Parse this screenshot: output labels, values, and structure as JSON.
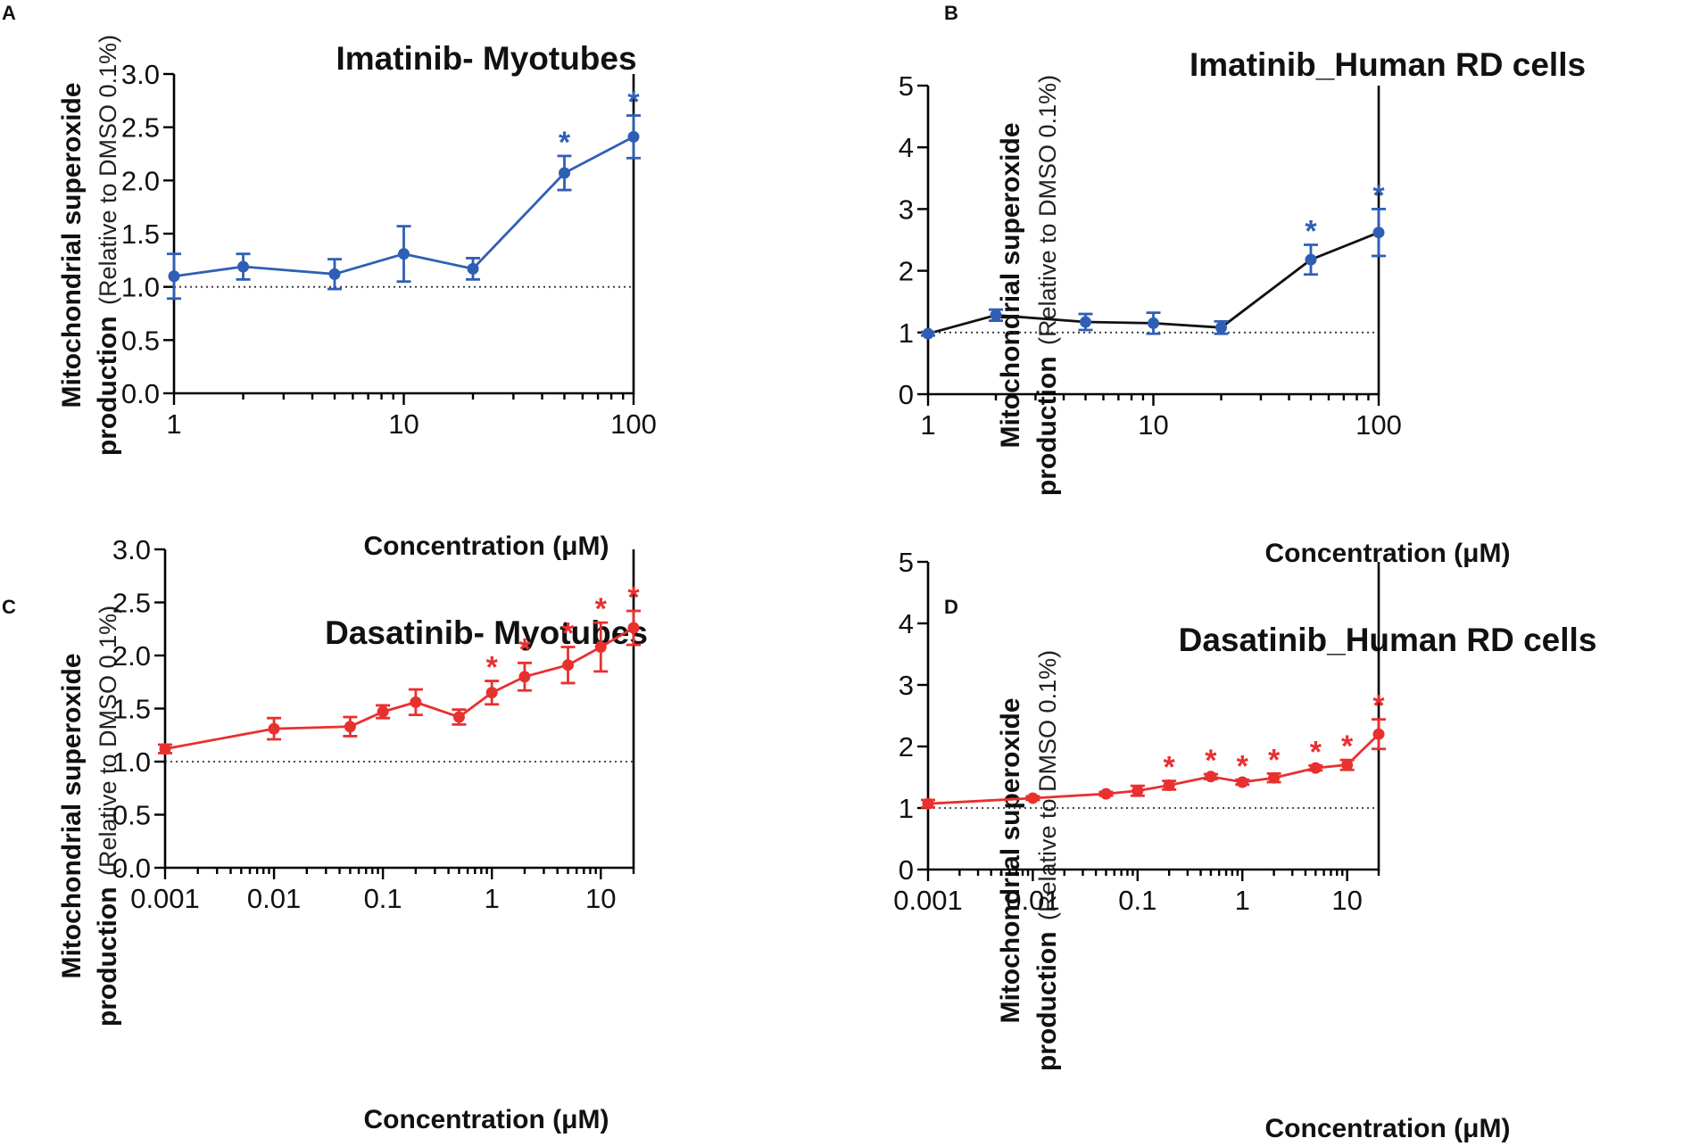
{
  "chart_data": [
    {
      "panel": "A",
      "type": "line",
      "title": "Imatinib- Myotubes",
      "xlabel": "Concentration (μM)",
      "ylabel": "Mitochondrial superoxide",
      "ylabel_line2": "production",
      "ylabel_sub": "(Relative to DMSO 0.1%)",
      "xscale": "log",
      "xlim": [
        1,
        100
      ],
      "ylim": [
        0,
        3.0
      ],
      "x_ticks": [
        1,
        10,
        100
      ],
      "x_tick_labels": [
        "1",
        "10",
        "100"
      ],
      "y_ticks": [
        0,
        0.5,
        1.0,
        1.5,
        2.0,
        2.5,
        3.0
      ],
      "y_tick_labels": [
        "0.0",
        "0.5",
        "1.0",
        "1.5",
        "2.0",
        "2.5",
        "3.0"
      ],
      "reference_line": 1.0,
      "color": "#2f5fb4",
      "line_color": "#2f5fb4",
      "series": [
        {
          "name": "Imatinib",
          "x": [
            1,
            2,
            5,
            10,
            20,
            50,
            100
          ],
          "values": [
            1.1,
            1.19,
            1.12,
            1.31,
            1.17,
            2.07,
            2.41
          ],
          "error": [
            0.21,
            0.12,
            0.14,
            0.26,
            0.1,
            0.16,
            0.2
          ],
          "significant": [
            false,
            false,
            false,
            false,
            false,
            true,
            true
          ]
        }
      ],
      "significance_marker": "*"
    },
    {
      "panel": "B",
      "type": "line",
      "title": "Imatinib_Human RD cells",
      "xlabel": "Concentration (μM)",
      "ylabel": "Mitochondrial superoxide",
      "ylabel_line2": "production",
      "ylabel_sub": "(Relative to DMSO 0.1%)",
      "xscale": "log",
      "xlim": [
        1,
        100
      ],
      "ylim": [
        0,
        5
      ],
      "x_ticks": [
        1,
        10,
        100
      ],
      "x_tick_labels": [
        "1",
        "10",
        "100"
      ],
      "y_ticks": [
        0,
        1,
        2,
        3,
        4,
        5
      ],
      "y_tick_labels": [
        "0",
        "1",
        "2",
        "3",
        "4",
        "5"
      ],
      "reference_line": 1.0,
      "color": "#2f5fb4",
      "line_color": "#111111",
      "series": [
        {
          "name": "Imatinib",
          "x": [
            1,
            2,
            5,
            10,
            20,
            50,
            100
          ],
          "values": [
            0.98,
            1.28,
            1.17,
            1.15,
            1.08,
            2.18,
            2.62
          ],
          "error": [
            0.03,
            0.09,
            0.13,
            0.17,
            0.1,
            0.24,
            0.38
          ],
          "significant": [
            false,
            false,
            false,
            false,
            false,
            true,
            true
          ]
        }
      ],
      "significance_marker": "*"
    },
    {
      "panel": "C",
      "type": "line",
      "title": "Dasatinib- Myotubes",
      "xlabel": "Concentration (μM)",
      "ylabel": "Mitochondrial superoxide",
      "ylabel_line2": "production",
      "ylabel_sub": "(Relative to DMSO 0.1%)",
      "xscale": "log",
      "xlim": [
        0.001,
        20
      ],
      "ylim": [
        0,
        3.0
      ],
      "x_ticks": [
        0.001,
        0.01,
        0.1,
        1,
        10
      ],
      "x_tick_labels": [
        "0.001",
        "0.01",
        "0.1",
        "1",
        "10"
      ],
      "y_ticks": [
        0,
        0.5,
        1.0,
        1.5,
        2.0,
        2.5,
        3.0
      ],
      "y_tick_labels": [
        "0.0",
        "0.5",
        "1.0",
        "1.5",
        "2.0",
        "2.5",
        "3.0"
      ],
      "reference_line": 1.0,
      "color": "#e8302f",
      "line_color": "#e8302f",
      "series": [
        {
          "name": "Dasatinib",
          "x": [
            0.001,
            0.01,
            0.05,
            0.1,
            0.2,
            0.5,
            1,
            2,
            5,
            10,
            20
          ],
          "values": [
            1.12,
            1.31,
            1.33,
            1.47,
            1.56,
            1.42,
            1.65,
            1.8,
            1.91,
            2.08,
            2.26
          ],
          "error": [
            0.04,
            0.1,
            0.09,
            0.06,
            0.12,
            0.07,
            0.11,
            0.13,
            0.17,
            0.23,
            0.16
          ],
          "significant": [
            false,
            false,
            false,
            false,
            false,
            false,
            true,
            true,
            true,
            true,
            true
          ]
        }
      ],
      "significance_marker": "*"
    },
    {
      "panel": "D",
      "type": "line",
      "title": "Dasatinib_Human RD cells",
      "xlabel": "Concentration (μM)",
      "ylabel": "Mitochondrial superoxide",
      "ylabel_line2": "production",
      "ylabel_sub": "(Relative to DMSO 0.1%)",
      "xscale": "log",
      "xlim": [
        0.001,
        20
      ],
      "ylim": [
        0,
        5
      ],
      "x_ticks": [
        0.001,
        0.01,
        0.1,
        1,
        10
      ],
      "x_tick_labels": [
        "0.001",
        "0.01",
        "0.1",
        "1",
        "10"
      ],
      "y_ticks": [
        0,
        1,
        2,
        3,
        4,
        5
      ],
      "y_tick_labels": [
        "0",
        "1",
        "2",
        "3",
        "4",
        "5"
      ],
      "reference_line": 1.0,
      "color": "#e8302f",
      "line_color": "#e8302f",
      "series": [
        {
          "name": "Dasatinib",
          "x": [
            0.001,
            0.01,
            0.05,
            0.1,
            0.2,
            0.5,
            1,
            2,
            5,
            10,
            20
          ],
          "values": [
            1.07,
            1.16,
            1.23,
            1.28,
            1.37,
            1.51,
            1.42,
            1.49,
            1.65,
            1.7,
            2.2
          ],
          "error": [
            0.06,
            0.03,
            0.03,
            0.08,
            0.07,
            0.04,
            0.04,
            0.07,
            0.04,
            0.08,
            0.24
          ],
          "significant": [
            false,
            false,
            false,
            false,
            true,
            true,
            true,
            true,
            true,
            true,
            true
          ]
        }
      ],
      "significance_marker": "*"
    }
  ]
}
